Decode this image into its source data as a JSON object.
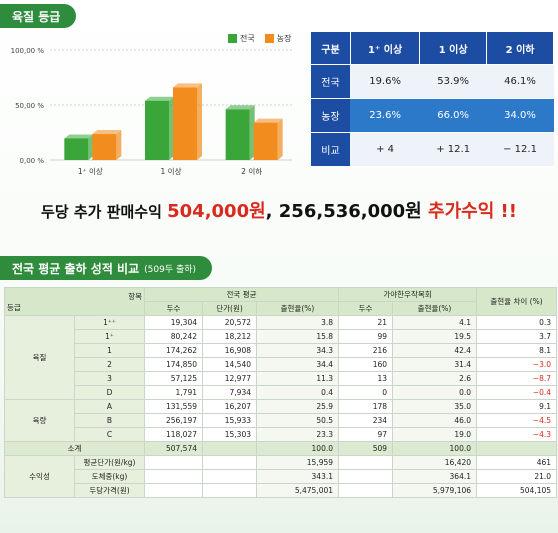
{
  "section1": {
    "title": "육질 등급"
  },
  "legend": [
    {
      "label": "전국",
      "color": "#3aa63a"
    },
    {
      "label": "농장",
      "color": "#f28c1e"
    }
  ],
  "chart_data": {
    "type": "bar",
    "categories": [
      "1⁺ 이상",
      "1 이상",
      "2 이하"
    ],
    "series": [
      {
        "name": "전국",
        "values": [
          19.6,
          53.9,
          46.1
        ]
      },
      {
        "name": "농장",
        "values": [
          23.6,
          66.0,
          34.0
        ]
      }
    ],
    "ylim": [
      0,
      100
    ],
    "yticks": [
      "0,00 %",
      "50,00 %",
      "100,00 %"
    ],
    "colors": [
      "#3aa63a",
      "#f28c1e"
    ]
  },
  "table1": {
    "headers": [
      "구분",
      "1⁺ 이상",
      "1 이상",
      "2 이하"
    ],
    "rows": [
      {
        "label": "전국",
        "cells": [
          "19.6%",
          "53.9%",
          "46.1%"
        ]
      },
      {
        "label": "농장",
        "cells": [
          "23.6%",
          "66.0%",
          "34.0%"
        ]
      },
      {
        "label": "비교",
        "cells": [
          "+ 4",
          "+ 12.1",
          "− 12.1"
        ]
      }
    ]
  },
  "headline": {
    "p1": "두당 추가 판매수익 ",
    "p2": "504,000원",
    "p3": ", ",
    "p4": "256,536,000원",
    "p5": " 추가수익 !!"
  },
  "section2": {
    "title": "전국 평균 출하 성적 비교",
    "subtitle": "(509두 출하)"
  },
  "table2": {
    "h_grade": "등급",
    "h_item": "항목",
    "h_nat": "전국 평균",
    "h_farm": "가야한우작목회",
    "h_diff": "출현율 차이 (%)",
    "h_nat_cols": [
      "두수",
      "단가(원)",
      "출현율(%)"
    ],
    "h_farm_cols": [
      "두수",
      "출현율(%)"
    ],
    "g_quality": "육질",
    "g_yield": "육량",
    "q_rows": [
      [
        "1⁺⁺",
        "19,304",
        "20,572",
        "3.8",
        "21",
        "4.1",
        "0.3"
      ],
      [
        "1⁺",
        "80,242",
        "18,212",
        "15.8",
        "99",
        "19.5",
        "3.7"
      ],
      [
        "1",
        "174,262",
        "16,908",
        "34.3",
        "216",
        "42.4",
        "8.1"
      ],
      [
        "2",
        "174,850",
        "14,540",
        "34.4",
        "160",
        "31.4",
        "−3.0"
      ],
      [
        "3",
        "57,125",
        "12,977",
        "11.3",
        "13",
        "2.6",
        "−8.7"
      ],
      [
        "D",
        "1,791",
        "7,934",
        "0.4",
        "0",
        "0.0",
        "−0.4"
      ]
    ],
    "y_rows": [
      [
        "A",
        "131,559",
        "16,207",
        "25.9",
        "178",
        "35.0",
        "9.1"
      ],
      [
        "B",
        "256,197",
        "15,933",
        "50.5",
        "234",
        "46.0",
        "−4.5"
      ],
      [
        "C",
        "118,027",
        "15,303",
        "23.3",
        "97",
        "19.0",
        "−4.3"
      ]
    ],
    "subtotal": [
      "소계",
      "507,574",
      "100.0",
      "509",
      "100.0"
    ],
    "g_profit": "수익성",
    "p_rows": [
      [
        "평균단가(원/kg)",
        "15,959",
        "16,420",
        "461"
      ],
      [
        "도체중(kg)",
        "343.1",
        "364.1",
        "21.0"
      ],
      [
        "두당가격(원)",
        "5,475,001",
        "5,979,106",
        "504,105"
      ]
    ]
  }
}
